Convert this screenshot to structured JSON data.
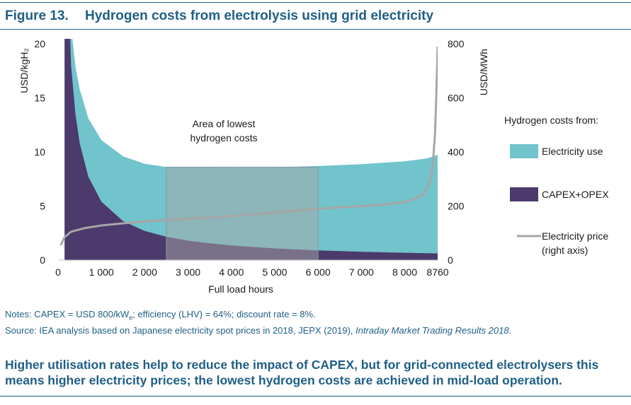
{
  "figure": {
    "number": "Figure 13.",
    "title": "Hydrogen costs from electrolysis using grid electricity"
  },
  "chart_data": {
    "type": "area",
    "xlabel": "Full load hours",
    "ylabel_left": "USD/kgH₂",
    "ylabel_right": "USD/MWh",
    "xlim": [
      0,
      8760
    ],
    "ylim_left": [
      0,
      20
    ],
    "ylim_right": [
      0,
      800
    ],
    "x_ticks": [
      "0",
      "1 000",
      "2 000",
      "3 000",
      "4 000",
      "5 000",
      "6 000",
      "7 000",
      "8 000",
      "8760"
    ],
    "x_tick_values": [
      0,
      1000,
      2000,
      3000,
      4000,
      5000,
      6000,
      7000,
      8000,
      8760
    ],
    "y_ticks_left": [
      "0",
      "5",
      "10",
      "15",
      "20"
    ],
    "y_ticks_right": [
      "0",
      "200",
      "400",
      "600",
      "800"
    ],
    "x": [
      150,
      300,
      400,
      500,
      700,
      1000,
      1500,
      2000,
      2500,
      3000,
      3500,
      4000,
      5000,
      6000,
      7000,
      8000,
      8500,
      8760
    ],
    "series": [
      {
        "name": "CAPEX+OPEX",
        "axis": "left",
        "color": "#4b3a6b",
        "stacked": true,
        "values": [
          36,
          18,
          13.5,
          10.8,
          7.7,
          5.4,
          3.6,
          2.7,
          2.16,
          1.8,
          1.55,
          1.35,
          1.08,
          0.9,
          0.77,
          0.68,
          0.64,
          0.62
        ]
      },
      {
        "name": "Electricity use",
        "axis": "left",
        "color": "#71c4cb",
        "stacked": true,
        "values": [
          2.9,
          3.6,
          4.4,
          5.0,
          5.4,
          5.7,
          6.0,
          6.2,
          6.45,
          6.8,
          7.05,
          7.2,
          7.5,
          7.8,
          8.1,
          8.45,
          8.75,
          9.1
        ]
      },
      {
        "name": "Electricity price",
        "axis": "right",
        "color": "#a6a6a6",
        "x": [
          60,
          150,
          300,
          600,
          1000,
          1500,
          2000,
          3000,
          4000,
          5000,
          6000,
          7000,
          7500,
          8000,
          8200,
          8400,
          8500,
          8600,
          8650,
          8700,
          8730,
          8760
        ],
        "values": [
          55,
          85,
          105,
          118,
          128,
          136,
          143,
          153,
          163,
          176,
          190,
          200,
          205,
          215,
          225,
          240,
          260,
          300,
          360,
          470,
          620,
          790
        ]
      }
    ],
    "annotation": {
      "text_lines": [
        "Area of lowest",
        "hydrogen costs"
      ],
      "x_range": [
        2500,
        6000
      ],
      "y_range": [
        0,
        8.6
      ]
    },
    "legend": {
      "title": "Hydrogen costs from:",
      "position": "right",
      "items": [
        {
          "label": [
            "Electricity use"
          ],
          "color": "#71c4cb",
          "shape": "rect"
        },
        {
          "label": [
            "CAPEX+OPEX"
          ],
          "color": "#4b3a6b",
          "shape": "rect"
        },
        {
          "label": [
            "Electricity price",
            "(right axis)"
          ],
          "color": "#a6a6a6",
          "shape": "line"
        }
      ]
    }
  },
  "notes": {
    "line1_prefix": "Notes: CAPEX = USD 800/kW",
    "line1_sub": "e",
    "line1_suffix": "; efficiency (LHV) = 64%; discount rate = 8%.",
    "line2_prefix": "Source: IEA analysis based on Japanese electricity spot prices in 2018, JEPX (2019), ",
    "line2_italic": "Intraday Market Trading Results 2018",
    "line2_suffix": "."
  },
  "conclusion": "Higher utilisation rates help to reduce the impact of CAPEX, but for grid-connected electrolysers this means higher electricity prices; the lowest hydrogen costs are achieved in mid-load operation."
}
